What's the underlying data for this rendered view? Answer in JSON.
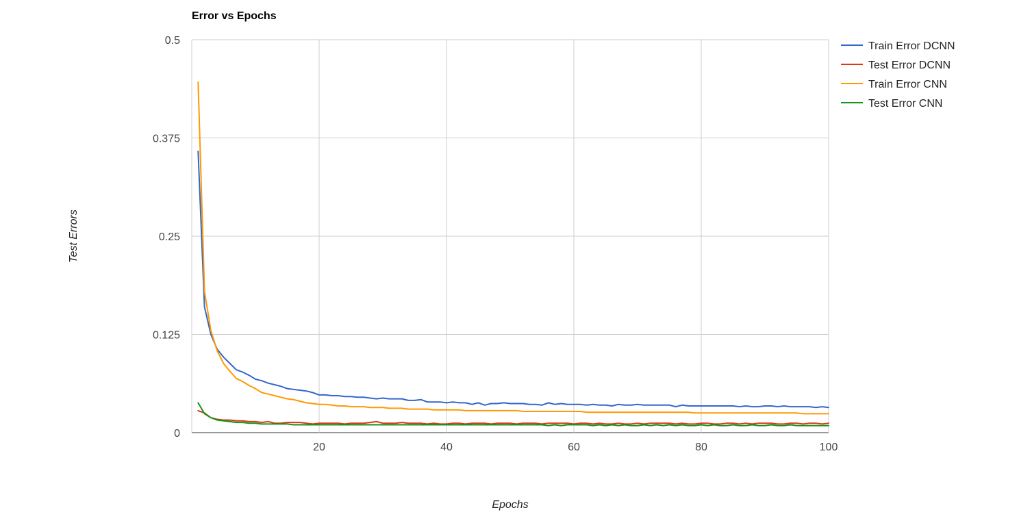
{
  "chart_data": {
    "type": "line",
    "title": "Error vs Epochs",
    "xlabel": "Epochs",
    "ylabel": "Test Errors",
    "xlim": [
      0,
      100
    ],
    "ylim": [
      0,
      0.5
    ],
    "x_ticks": [
      20,
      40,
      60,
      80,
      100
    ],
    "y_ticks": [
      0,
      0.125,
      0.25,
      0.375,
      0.5
    ],
    "x_tick_labels": [
      "20",
      "40",
      "60",
      "80",
      "100"
    ],
    "y_tick_labels": [
      "0",
      "0.125",
      "0.25",
      "0.375",
      "0.5"
    ],
    "grid": true,
    "legend_position": "right",
    "x": [
      1,
      2,
      3,
      4,
      5,
      6,
      7,
      8,
      9,
      10,
      11,
      12,
      13,
      14,
      15,
      16,
      17,
      18,
      19,
      20,
      21,
      22,
      23,
      24,
      25,
      26,
      27,
      28,
      29,
      30,
      31,
      32,
      33,
      34,
      35,
      36,
      37,
      38,
      39,
      40,
      41,
      42,
      43,
      44,
      45,
      46,
      47,
      48,
      49,
      50,
      51,
      52,
      53,
      54,
      55,
      56,
      57,
      58,
      59,
      60,
      61,
      62,
      63,
      64,
      65,
      66,
      67,
      68,
      69,
      70,
      71,
      72,
      73,
      74,
      75,
      76,
      77,
      78,
      79,
      80,
      81,
      82,
      83,
      84,
      85,
      86,
      87,
      88,
      89,
      90,
      91,
      92,
      93,
      94,
      95,
      96,
      97,
      98,
      99,
      100
    ],
    "series": [
      {
        "name": "Train Error DCNN",
        "color": "#3366cc",
        "values": [
          0.358,
          0.16,
          0.125,
          0.106,
          0.096,
          0.088,
          0.08,
          0.077,
          0.073,
          0.068,
          0.066,
          0.063,
          0.061,
          0.059,
          0.056,
          0.055,
          0.054,
          0.053,
          0.051,
          0.048,
          0.048,
          0.047,
          0.047,
          0.046,
          0.046,
          0.045,
          0.045,
          0.044,
          0.043,
          0.044,
          0.043,
          0.043,
          0.043,
          0.041,
          0.041,
          0.042,
          0.039,
          0.039,
          0.039,
          0.038,
          0.039,
          0.038,
          0.038,
          0.036,
          0.038,
          0.035,
          0.037,
          0.037,
          0.038,
          0.037,
          0.037,
          0.037,
          0.036,
          0.036,
          0.035,
          0.038,
          0.036,
          0.037,
          0.036,
          0.036,
          0.036,
          0.035,
          0.036,
          0.035,
          0.035,
          0.034,
          0.036,
          0.035,
          0.035,
          0.036,
          0.035,
          0.035,
          0.035,
          0.035,
          0.035,
          0.033,
          0.035,
          0.034,
          0.034,
          0.034,
          0.034,
          0.034,
          0.034,
          0.034,
          0.034,
          0.033,
          0.034,
          0.033,
          0.033,
          0.034,
          0.034,
          0.033,
          0.034,
          0.033,
          0.033,
          0.033,
          0.033,
          0.032,
          0.033,
          0.032
        ]
      },
      {
        "name": "Test Error DCNN",
        "color": "#dc3912",
        "values": [
          0.028,
          0.025,
          0.019,
          0.017,
          0.016,
          0.016,
          0.015,
          0.015,
          0.014,
          0.014,
          0.013,
          0.014,
          0.012,
          0.012,
          0.013,
          0.013,
          0.013,
          0.012,
          0.011,
          0.012,
          0.012,
          0.012,
          0.012,
          0.011,
          0.012,
          0.012,
          0.012,
          0.013,
          0.014,
          0.012,
          0.012,
          0.012,
          0.013,
          0.012,
          0.012,
          0.012,
          0.011,
          0.012,
          0.011,
          0.011,
          0.012,
          0.012,
          0.011,
          0.012,
          0.012,
          0.012,
          0.011,
          0.012,
          0.012,
          0.012,
          0.011,
          0.012,
          0.012,
          0.012,
          0.011,
          0.012,
          0.012,
          0.012,
          0.012,
          0.011,
          0.012,
          0.012,
          0.011,
          0.012,
          0.011,
          0.011,
          0.012,
          0.011,
          0.011,
          0.012,
          0.011,
          0.012,
          0.012,
          0.012,
          0.012,
          0.011,
          0.012,
          0.011,
          0.011,
          0.012,
          0.012,
          0.011,
          0.011,
          0.012,
          0.012,
          0.011,
          0.012,
          0.011,
          0.012,
          0.012,
          0.012,
          0.011,
          0.011,
          0.012,
          0.012,
          0.011,
          0.012,
          0.012,
          0.011,
          0.012
        ]
      },
      {
        "name": "Train Error CNN",
        "color": "#ff9900",
        "values": [
          0.446,
          0.18,
          0.13,
          0.104,
          0.088,
          0.078,
          0.069,
          0.065,
          0.06,
          0.056,
          0.051,
          0.049,
          0.047,
          0.045,
          0.043,
          0.042,
          0.04,
          0.038,
          0.037,
          0.036,
          0.036,
          0.035,
          0.034,
          0.034,
          0.033,
          0.033,
          0.033,
          0.032,
          0.032,
          0.032,
          0.031,
          0.031,
          0.031,
          0.03,
          0.03,
          0.03,
          0.03,
          0.029,
          0.029,
          0.029,
          0.029,
          0.029,
          0.028,
          0.028,
          0.028,
          0.028,
          0.028,
          0.028,
          0.028,
          0.028,
          0.028,
          0.027,
          0.027,
          0.027,
          0.027,
          0.027,
          0.027,
          0.027,
          0.027,
          0.027,
          0.027,
          0.026,
          0.026,
          0.026,
          0.026,
          0.026,
          0.026,
          0.026,
          0.026,
          0.026,
          0.026,
          0.026,
          0.026,
          0.026,
          0.026,
          0.026,
          0.026,
          0.026,
          0.025,
          0.025,
          0.025,
          0.025,
          0.025,
          0.025,
          0.025,
          0.025,
          0.025,
          0.025,
          0.025,
          0.025,
          0.025,
          0.025,
          0.025,
          0.025,
          0.025,
          0.024,
          0.024,
          0.024,
          0.024,
          0.024
        ]
      },
      {
        "name": "Test Error CNN",
        "color": "#109618",
        "values": [
          0.038,
          0.024,
          0.019,
          0.016,
          0.015,
          0.014,
          0.013,
          0.013,
          0.012,
          0.012,
          0.011,
          0.011,
          0.011,
          0.011,
          0.011,
          0.01,
          0.01,
          0.01,
          0.01,
          0.01,
          0.01,
          0.01,
          0.01,
          0.01,
          0.01,
          0.01,
          0.01,
          0.01,
          0.01,
          0.01,
          0.01,
          0.01,
          0.01,
          0.01,
          0.01,
          0.01,
          0.01,
          0.01,
          0.01,
          0.01,
          0.01,
          0.01,
          0.01,
          0.01,
          0.01,
          0.01,
          0.01,
          0.01,
          0.01,
          0.01,
          0.01,
          0.01,
          0.01,
          0.01,
          0.01,
          0.009,
          0.01,
          0.009,
          0.01,
          0.01,
          0.01,
          0.01,
          0.009,
          0.01,
          0.009,
          0.01,
          0.009,
          0.01,
          0.009,
          0.009,
          0.01,
          0.009,
          0.01,
          0.009,
          0.01,
          0.009,
          0.01,
          0.009,
          0.009,
          0.01,
          0.009,
          0.01,
          0.009,
          0.009,
          0.01,
          0.009,
          0.009,
          0.01,
          0.009,
          0.009,
          0.01,
          0.009,
          0.009,
          0.01,
          0.009,
          0.009,
          0.009,
          0.009,
          0.009,
          0.009
        ]
      }
    ]
  }
}
